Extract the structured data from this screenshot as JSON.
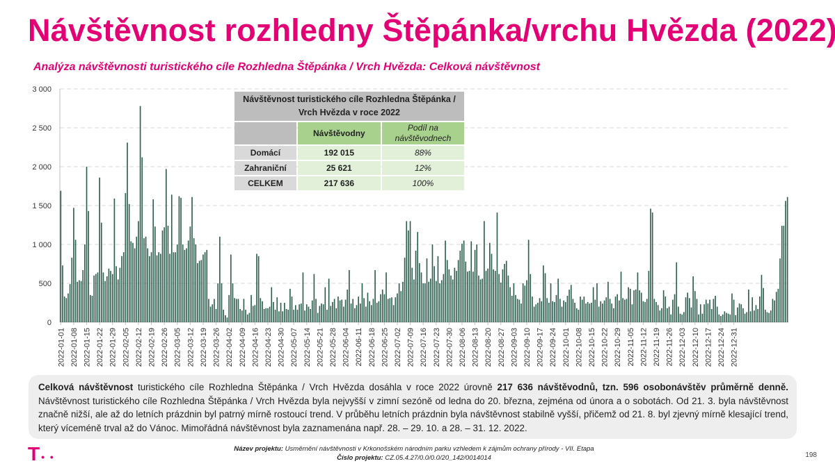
{
  "page": {
    "title": "Návštěvnost rozhledny Štěpánka/vrchu Hvězda (2022)",
    "subtitle": "Analýza návštěvnosti turistického cíle Rozhledna Štěpánka / Vrch Hvězda: Celková návštěvnost",
    "page_number": "198",
    "logo_letter": "T",
    "logo_dots": "• •"
  },
  "table": {
    "header": "Návštěvnost turistického cíle Rozhledna Štěpánka / Vrch Hvězda v roce 2022",
    "col1": "Návštěvodny",
    "col2": "Podíl na návštěvodnech",
    "rows": [
      {
        "label": "Domácí",
        "value": "192 015",
        "share": "88%"
      },
      {
        "label": "Zahraniční",
        "value": "25 621",
        "share": "12%"
      },
      {
        "label": "CELKEM",
        "value": "217 636",
        "share": "100%"
      }
    ]
  },
  "text": {
    "bold1": "Celková návštěvnost",
    "t1": " turistického cíle Rozhledna Štěpánka / Vrch Hvězda dosáhla v roce 2022 úrovně ",
    "bold2": "217 636 návštěvodnů, tzn. 596 osobonávštěv průměrně denně.",
    "t2": " Návštěvnost turistického cíle Rozhledna Štěpánka / Vrch Hvězda byla nejvyšší v zimní sezóně od ledna do 20. března, zejména od února a o sobotách. Od 21. 3. byla návštěvnost značně nižší, ale až do letních prázdnin byl patrný mírně rostoucí trend. V průběhu letních prázdnin byla návštěvnost stabilně vyšší, přičemž od 21. 8. byl zjevný mírně klesající trend, který víceméně trval až do Vánoc. Mimořádná návštěvnost byla zaznamenána např. 28. – 29. 10. a 28. – 31. 12. 2022."
  },
  "footer": {
    "project_label": "Název projektu:",
    "project_name": "Usměrnění návštěvnosti v Krkonošském národním parku vzhledem k zájmům ochrany přírody - VII. Etapa",
    "number_label": "Číslo projektu:",
    "number": "CZ.05.4.27/0.0/0.0/20_142/0014014"
  },
  "chart_data": {
    "type": "bar",
    "title": "",
    "xlabel": "",
    "ylabel": "",
    "ylim": [
      0,
      3000
    ],
    "yticks": [
      0,
      500,
      1000,
      1500,
      2000,
      2500,
      3000
    ],
    "ytick_labels": [
      "0",
      "500",
      "1 000",
      "1 500",
      "2 000",
      "2 500",
      "3 000"
    ],
    "grid": "horizontal dashed",
    "bar_color": "#2f5f4f",
    "start_date": "2022-01-01",
    "xtick_labels": [
      "2022-01-01",
      "2022-01-08",
      "2022-01-15",
      "2022-01-22",
      "2022-01-29",
      "2022-02-05",
      "2022-02-12",
      "2022-02-19",
      "2022-02-26",
      "2022-03-05",
      "2022-03-12",
      "2022-03-19",
      "2022-03-26",
      "2022-04-02",
      "2022-04-09",
      "2022-04-16",
      "2022-04-23",
      "2022-04-30",
      "2022-05-07",
      "2022-05-14",
      "2022-05-21",
      "2022-05-28",
      "2022-06-04",
      "2022-06-11",
      "2022-06-18",
      "2022-06-25",
      "2022-07-02",
      "2022-07-09",
      "2022-07-16",
      "2022-07-23",
      "2022-07-30",
      "2022-08-06",
      "2022-08-13",
      "2022-08-20",
      "2022-08-27",
      "2022-09-03",
      "2022-09-10",
      "2022-09-17",
      "2022-09-24",
      "2022-10-01",
      "2022-10-08",
      "2022-10-15",
      "2022-10-22",
      "2022-10-29",
      "2022-11-05",
      "2022-11-12",
      "2022-11-19",
      "2022-11-26",
      "2022-12-03",
      "2022-12-10",
      "2022-12-17",
      "2022-12-24",
      "2022-12-31"
    ],
    "values": [
      1690,
      730,
      330,
      310,
      370,
      490,
      830,
      1470,
      1060,
      520,
      540,
      530,
      670,
      1000,
      2000,
      1430,
      350,
      340,
      600,
      620,
      640,
      1860,
      1280,
      640,
      530,
      590,
      690,
      660,
      620,
      1590,
      720,
      550,
      700,
      850,
      900,
      1660,
      2310,
      1520,
      1040,
      1020,
      950,
      1100,
      1300,
      2780,
      2120,
      1080,
      1100,
      950,
      850,
      900,
      1580,
      1230,
      860,
      900,
      880,
      1180,
      1220,
      1970,
      1240,
      880,
      1640,
      900,
      900,
      1000,
      1620,
      1600,
      1000,
      930,
      950,
      1050,
      1230,
      1610,
      1080,
      1000,
      760,
      790,
      800,
      870,
      900,
      930,
      300,
      200,
      230,
      300,
      170,
      500,
      1100,
      500,
      160,
      90,
      60,
      350,
      870,
      500,
      310,
      300,
      300,
      170,
      150,
      300,
      160,
      100,
      120,
      350,
      210,
      220,
      880,
      850,
      310,
      270,
      170,
      180,
      180,
      200,
      450,
      260,
      160,
      320,
      140,
      250,
      140,
      250,
      170,
      160,
      430,
      330,
      160,
      220,
      160,
      230,
      240,
      640,
      150,
      230,
      200,
      170,
      280,
      620,
      300,
      120,
      210,
      240,
      230,
      450,
      160,
      560,
      210,
      260,
      300,
      180,
      330,
      280,
      290,
      200,
      290,
      420,
      670,
      240,
      300,
      180,
      220,
      330,
      240,
      500,
      310,
      200,
      380,
      270,
      220,
      300,
      670,
      250,
      270,
      360,
      420,
      360,
      640,
      300,
      310,
      320,
      220,
      320,
      370,
      500,
      400,
      520,
      830,
      1300,
      1180,
      1300,
      700,
      550,
      920,
      1160,
      760,
      640,
      500,
      500,
      820,
      520,
      560,
      1000,
      720,
      530,
      850,
      500,
      540,
      620,
      1050,
      800,
      680,
      600,
      550,
      700,
      660,
      800,
      920,
      1010,
      1050,
      780,
      650,
      660,
      1040,
      650,
      930,
      1000,
      600,
      550,
      560,
      1300,
      660,
      690,
      1020,
      880,
      680,
      660,
      1410,
      620,
      510,
      680,
      750,
      790,
      600,
      450,
      340,
      500,
      350,
      300,
      290,
      240,
      500,
      470,
      540,
      1060,
      620,
      330,
      200,
      230,
      250,
      310,
      270,
      730,
      630,
      310,
      250,
      500,
      270,
      260,
      350,
      560,
      300,
      200,
      280,
      260,
      340,
      420,
      480,
      300,
      250,
      180,
      160,
      330,
      290,
      330,
      240,
      260,
      240,
      250,
      450,
      290,
      500,
      200,
      270,
      240,
      280,
      320,
      520,
      300,
      240,
      180,
      330,
      360,
      280,
      650,
      310,
      290,
      300,
      450,
      430,
      230,
      410,
      420,
      640,
      410,
      380,
      270,
      260,
      300,
      660,
      1460,
      1410,
      300,
      260,
      220,
      150,
      180,
      410,
      330,
      180,
      200,
      100,
      290,
      360,
      770,
      200,
      110,
      100,
      130,
      320,
      380,
      310,
      190,
      590,
      400,
      300,
      100,
      230,
      110,
      230,
      290,
      240,
      290,
      170,
      300,
      340,
      200,
      100,
      80,
      100,
      140,
      120,
      110,
      100,
      370,
      290,
      90,
      190,
      240,
      230,
      180,
      110,
      130,
      420,
      140,
      320,
      150,
      220,
      170,
      330,
      610,
      440,
      160,
      130,
      120,
      150,
      300,
      280,
      390,
      430,
      820,
      1240,
      1240,
      1560,
      1610
    ],
    "series_name": "Návštěvodny"
  }
}
